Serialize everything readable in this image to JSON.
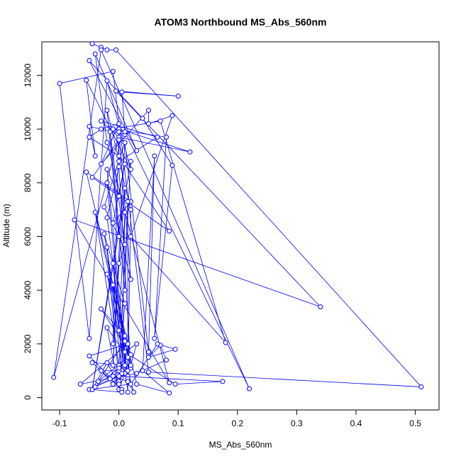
{
  "chart_data": {
    "type": "line",
    "title": "ATOM3 Northbound MS_Abs_560nm",
    "xlabel": "MS_Abs_560nm",
    "ylabel": "Altitude (m)",
    "xlim": [
      -0.13,
      0.54
    ],
    "ylim": [
      -460,
      13250
    ],
    "xticks": [
      -0.1,
      0.0,
      0.1,
      0.2,
      0.3,
      0.4,
      0.5
    ],
    "xtick_labels": [
      "-0.1",
      "0.0",
      "0.1",
      "0.2",
      "0.3",
      "0.4",
      "0.5"
    ],
    "yticks": [
      0,
      2000,
      4000,
      6000,
      8000,
      10000,
      12000
    ],
    "ytick_labels": [
      "0",
      "2000",
      "4000",
      "6000",
      "8000",
      "10000",
      "12000"
    ],
    "grid": false,
    "legend": "none",
    "series": [
      {
        "color": "#0000ff",
        "marker": "open-circle",
        "points": [
          [
            -0.045,
            13180
          ],
          [
            -0.03,
            13050
          ],
          [
            -0.02,
            12950
          ],
          [
            -0.005,
            12950
          ],
          [
            0.51,
            400
          ],
          [
            0.05,
            950
          ],
          [
            -0.01,
            12150
          ],
          [
            -0.1,
            11700
          ],
          [
            -0.05,
            2200
          ],
          [
            -0.02,
            11800
          ],
          [
            0.02,
            8500
          ],
          [
            -0.055,
            11820
          ],
          [
            -0.04,
            9000
          ],
          [
            -0.05,
            10100
          ],
          [
            0.01,
            9800
          ],
          [
            0.0,
            10000
          ],
          [
            0.12,
            9150
          ],
          [
            0.0,
            9700
          ],
          [
            -0.11,
            750
          ],
          [
            -0.03,
            12950
          ],
          [
            0.22,
            330
          ],
          [
            0.01,
            9900
          ],
          [
            0.005,
            11380
          ],
          [
            0.1,
            11230
          ],
          [
            -0.005,
            11420
          ],
          [
            0.34,
            3380
          ],
          [
            -0.075,
            6620
          ],
          [
            0.085,
            550
          ],
          [
            -0.02,
            9500
          ],
          [
            -0.04,
            12800
          ],
          [
            0.03,
            9200
          ],
          [
            -0.05,
            12550
          ],
          [
            0.04,
            10400
          ],
          [
            0.09,
            8650
          ],
          [
            0.06,
            2200
          ],
          [
            0.08,
            9700
          ],
          [
            -0.01,
            10000
          ],
          [
            0.07,
            10300
          ],
          [
            0.18,
            2050
          ],
          [
            0.02,
            6000
          ],
          [
            0.09,
            10500
          ],
          [
            0.05,
            10200
          ],
          [
            0.05,
            10700
          ],
          [
            -0.03,
            8700
          ],
          [
            0.0,
            10200
          ],
          [
            -0.03,
            10000
          ],
          [
            -0.05,
            9700
          ],
          [
            0.0,
            9000
          ],
          [
            0.085,
            6200
          ],
          [
            -0.045,
            8200
          ],
          [
            0.0,
            9600
          ],
          [
            0.0,
            8800
          ],
          [
            0.065,
            9700
          ],
          [
            -0.03,
            10300
          ],
          [
            0.01,
            9500
          ],
          [
            0.05,
            1700
          ],
          [
            0.06,
            9000
          ],
          [
            0.04,
            1000
          ],
          [
            0.085,
            170
          ],
          [
            0.03,
            500
          ],
          [
            -0.055,
            8400
          ],
          [
            0.02,
            7300
          ],
          [
            -0.01,
            6500
          ],
          [
            0.01,
            8700
          ],
          [
            0.0,
            7500
          ],
          [
            -0.02,
            8500
          ],
          [
            0.015,
            600
          ],
          [
            0.02,
            7000
          ],
          [
            -0.02,
            10700
          ],
          [
            0.0,
            6000
          ],
          [
            -0.025,
            7100
          ],
          [
            0.01,
            9500
          ],
          [
            -0.01,
            1200
          ],
          [
            0.0,
            5000
          ],
          [
            0.01,
            5700
          ],
          [
            -0.015,
            9900
          ],
          [
            0.01,
            4000
          ],
          [
            0.015,
            7300
          ],
          [
            0.015,
            200
          ],
          [
            -0.02,
            8000
          ],
          [
            0.02,
            4400
          ],
          [
            0.0,
            9900
          ],
          [
            -0.01,
            2000
          ],
          [
            0.01,
            7800
          ],
          [
            -0.045,
            300
          ],
          [
            0.02,
            8800
          ],
          [
            0.0,
            1200
          ],
          [
            -0.04,
            6900
          ],
          [
            0.02,
            1100
          ],
          [
            0.0,
            8600
          ],
          [
            -0.02,
            6700
          ],
          [
            0.015,
            800
          ],
          [
            -0.025,
            6100
          ],
          [
            0.01,
            3500
          ],
          [
            0.0,
            600
          ],
          [
            -0.02,
            5600
          ],
          [
            0.005,
            1000
          ],
          [
            0.01,
            6900
          ],
          [
            0.0,
            2500
          ],
          [
            -0.01,
            5000
          ],
          [
            0.015,
            700
          ],
          [
            -0.02,
            4600
          ],
          [
            0.01,
            2300
          ],
          [
            -0.03,
            3300
          ],
          [
            0.02,
            1600
          ],
          [
            -0.01,
            4200
          ],
          [
            0.01,
            900
          ],
          [
            0.0,
            300
          ],
          [
            -0.02,
            2600
          ],
          [
            0.015,
            1500
          ],
          [
            -0.035,
            600
          ],
          [
            0.01,
            2100
          ],
          [
            0.02,
            1200
          ],
          [
            -0.045,
            1300
          ],
          [
            0.005,
            300
          ],
          [
            -0.05,
            1550
          ],
          [
            0.015,
            2000
          ],
          [
            -0.065,
            500
          ],
          [
            0.03,
            900
          ],
          [
            0.08,
            1400
          ],
          [
            0.07,
            1950
          ],
          [
            0.05,
            1500
          ],
          [
            0.095,
            1800
          ],
          [
            0.065,
            2000
          ],
          [
            0.02,
            500
          ],
          [
            -0.05,
            300
          ],
          [
            0.0,
            800
          ],
          [
            0.175,
            600
          ],
          [
            0.095,
            500
          ],
          [
            0.01,
            1700
          ],
          [
            0.03,
            2000
          ],
          [
            0.02,
            1200
          ],
          [
            0.015,
            1000
          ],
          [
            0.025,
            200
          ],
          [
            0.015,
            600
          ],
          [
            -0.01,
            800
          ],
          [
            0.005,
            200
          ],
          [
            -0.045,
            300
          ],
          [
            -0.02,
            1300
          ],
          [
            0.0,
            500
          ],
          [
            0.01,
            1200
          ],
          [
            -0.015,
            700
          ],
          [
            0.0,
            1000
          ],
          [
            -0.03,
            1000
          ],
          [
            -0.01,
            500
          ],
          [
            0.005,
            900
          ],
          [
            -0.04,
            400
          ],
          [
            0.0,
            1100
          ]
        ]
      }
    ]
  }
}
